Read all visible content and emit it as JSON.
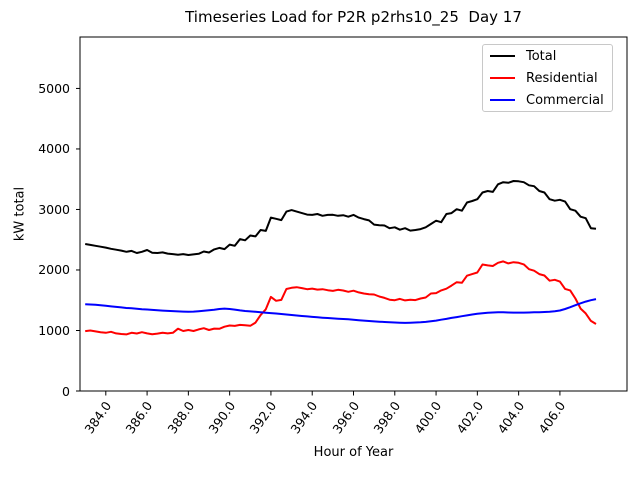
{
  "figure": {
    "background": "#ffffff"
  },
  "chart_data": {
    "type": "line",
    "title": "Timeseries Load for P2R p2rhs10_25  Day 17",
    "xlabel": "Hour of Year",
    "ylabel": "kW total",
    "xlim": [
      382.75,
      409.25
    ],
    "ylim": [
      0,
      5850
    ],
    "grid": false,
    "legend_position": "upper right",
    "legend_border_color": "#c8c8c8",
    "xticks": {
      "values": [
        384,
        386,
        388,
        390,
        392,
        394,
        396,
        398,
        400,
        402,
        404,
        406
      ],
      "labels": [
        "384.0",
        "386.0",
        "388.0",
        "390.0",
        "392.0",
        "394.0",
        "396.0",
        "398.0",
        "400.0",
        "402.0",
        "404.0",
        "406.0"
      ]
    },
    "yticks": {
      "values": [
        0,
        1000,
        2000,
        3000,
        4000,
        5000
      ],
      "labels": [
        "0",
        "1000",
        "2000",
        "3000",
        "4000",
        "5000"
      ]
    },
    "x": [
      383.0,
      383.25,
      383.5,
      383.75,
      384.0,
      384.25,
      384.5,
      384.75,
      385.0,
      385.25,
      385.5,
      385.75,
      386.0,
      386.25,
      386.5,
      386.75,
      387.0,
      387.25,
      387.5,
      387.75,
      388.0,
      388.25,
      388.5,
      388.75,
      389.0,
      389.25,
      389.5,
      389.75,
      390.0,
      390.25,
      390.5,
      390.75,
      391.0,
      391.25,
      391.5,
      391.75,
      392.0,
      392.25,
      392.5,
      392.75,
      393.0,
      393.25,
      393.5,
      393.75,
      394.0,
      394.25,
      394.5,
      394.75,
      395.0,
      395.25,
      395.5,
      395.75,
      396.0,
      396.25,
      396.5,
      396.75,
      397.0,
      397.25,
      397.5,
      397.75,
      398.0,
      398.25,
      398.5,
      398.75,
      399.0,
      399.25,
      399.5,
      399.75,
      400.0,
      400.25,
      400.5,
      400.75,
      401.0,
      401.25,
      401.5,
      401.75,
      402.0,
      402.25,
      402.5,
      402.75,
      403.0,
      403.25,
      403.5,
      403.75,
      404.0,
      404.25,
      404.5,
      404.75,
      405.0,
      405.25,
      405.5,
      405.75,
      406.0,
      406.25,
      406.5,
      406.75,
      407.0,
      407.25,
      407.5,
      407.75
    ],
    "series": [
      {
        "name": "Total",
        "color": "#000000",
        "values": [
          2430,
          2415,
          2400,
          2385,
          2370,
          2350,
          2335,
          2320,
          2300,
          2315,
          2280,
          2300,
          2330,
          2285,
          2280,
          2290,
          2270,
          2262,
          2252,
          2262,
          2248,
          2258,
          2268,
          2305,
          2288,
          2340,
          2365,
          2345,
          2420,
          2400,
          2510,
          2490,
          2570,
          2555,
          2660,
          2645,
          2865,
          2845,
          2825,
          2965,
          2990,
          2965,
          2940,
          2915,
          2910,
          2925,
          2895,
          2910,
          2912,
          2895,
          2905,
          2880,
          2910,
          2865,
          2840,
          2820,
          2750,
          2740,
          2735,
          2690,
          2705,
          2665,
          2690,
          2650,
          2660,
          2675,
          2705,
          2760,
          2815,
          2790,
          2925,
          2940,
          3005,
          2980,
          3115,
          3140,
          3170,
          3280,
          3305,
          3290,
          3415,
          3450,
          3440,
          3470,
          3465,
          3450,
          3400,
          3385,
          3305,
          3280,
          3170,
          3145,
          3160,
          3130,
          3005,
          2980,
          2880,
          2855,
          2690,
          2680
        ]
      },
      {
        "name": "Residential",
        "color": "#ff0000",
        "values": [
          990,
          1000,
          985,
          972,
          962,
          978,
          952,
          942,
          935,
          962,
          950,
          972,
          952,
          938,
          948,
          962,
          952,
          962,
          1030,
          992,
          1008,
          992,
          1018,
          1038,
          1008,
          1032,
          1028,
          1062,
          1082,
          1075,
          1092,
          1085,
          1078,
          1130,
          1255,
          1350,
          1555,
          1490,
          1505,
          1685,
          1705,
          1715,
          1700,
          1682,
          1692,
          1675,
          1682,
          1665,
          1655,
          1672,
          1660,
          1640,
          1658,
          1630,
          1612,
          1600,
          1595,
          1562,
          1538,
          1508,
          1500,
          1522,
          1498,
          1508,
          1502,
          1528,
          1545,
          1612,
          1618,
          1662,
          1690,
          1742,
          1798,
          1788,
          1905,
          1932,
          1958,
          2090,
          2075,
          2065,
          2118,
          2142,
          2108,
          2128,
          2118,
          2092,
          2012,
          1988,
          1932,
          1908,
          1822,
          1838,
          1808,
          1688,
          1662,
          1528,
          1362,
          1282,
          1158,
          1108
        ]
      },
      {
        "name": "Commercial",
        "color": "#0000ff",
        "values": [
          1435,
          1430,
          1424,
          1416,
          1408,
          1398,
          1390,
          1382,
          1372,
          1366,
          1360,
          1352,
          1346,
          1340,
          1334,
          1328,
          1324,
          1320,
          1316,
          1312,
          1310,
          1312,
          1318,
          1326,
          1334,
          1342,
          1355,
          1362,
          1355,
          1345,
          1332,
          1322,
          1315,
          1308,
          1300,
          1294,
          1288,
          1280,
          1272,
          1264,
          1256,
          1248,
          1240,
          1232,
          1225,
          1218,
          1212,
          1206,
          1200,
          1195,
          1190,
          1185,
          1178,
          1170,
          1163,
          1156,
          1150,
          1145,
          1140,
          1136,
          1132,
          1128,
          1126,
          1128,
          1132,
          1136,
          1142,
          1152,
          1164,
          1178,
          1192,
          1208,
          1222,
          1236,
          1250,
          1264,
          1276,
          1286,
          1294,
          1298,
          1300,
          1300,
          1298,
          1296,
          1295,
          1296,
          1298,
          1300,
          1302,
          1305,
          1310,
          1318,
          1330,
          1355,
          1385,
          1418,
          1450,
          1478,
          1500,
          1518
        ]
      }
    ]
  }
}
